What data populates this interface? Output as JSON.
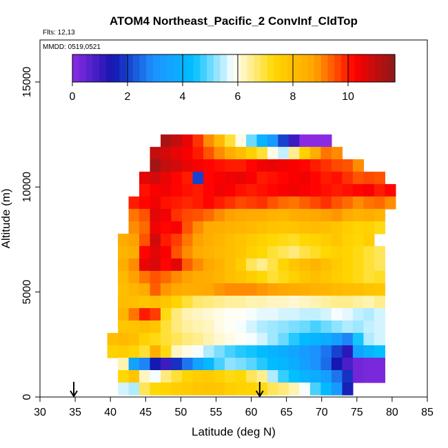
{
  "chart_data": {
    "type": "heatmap",
    "title": "ATOM4 Northeast_Pacific_2 ConvInf_CldTop",
    "flights_label": "Flts: 12,13",
    "date_label": "MMDD: 0519,0521",
    "xlabel": "Latitude (deg N)",
    "ylabel": "Altitude (m)",
    "xlim": [
      30,
      85
    ],
    "ylim": [
      0,
      17000
    ],
    "x_ticks": [
      "30",
      "35",
      "40",
      "45",
      "50",
      "55",
      "60",
      "65",
      "70",
      "75",
      "80",
      "85"
    ],
    "y_ticks": [
      "0",
      "5000",
      "10000",
      "15000"
    ],
    "colorbar": {
      "min": 0,
      "max": 11.7,
      "ticks": [
        "0",
        "2",
        "4",
        "6",
        "8",
        "10"
      ],
      "colors": [
        "#8a2be2",
        "#1515b0",
        "#1e90ff",
        "#00bfff",
        "#ffffff",
        "#ffd700",
        "#ffa500",
        "#ff0000",
        "#8b1a1a"
      ]
    },
    "arrows_x": [
      34.8,
      61.2
    ],
    "z_values": [
      [
        null,
        null,
        null,
        null,
        null,
        null,
        null,
        null,
        11.3,
        11.0,
        10.5,
        9.8,
        9.0,
        8.2,
        7.0,
        6.0,
        5.0,
        4.0,
        3.2,
        2.0,
        1.0,
        0.0,
        0.0,
        0.0,
        null,
        null,
        null,
        null,
        null,
        null,
        null
      ],
      [
        null,
        null,
        null,
        null,
        null,
        null,
        null,
        11.0,
        10.8,
        10.5,
        10.3,
        10.0,
        9.5,
        9.0,
        8.5,
        8.0,
        7.5,
        7.0,
        6.0,
        5.5,
        6.5,
        7.5,
        8.5,
        9.2,
        9.0,
        null,
        null,
        null,
        null,
        null,
        null
      ],
      [
        null,
        null,
        null,
        null,
        null,
        null,
        null,
        11.4,
        11.0,
        10.8,
        10.5,
        10.3,
        10.2,
        10.1,
        10.0,
        10.0,
        10.2,
        10.4,
        10.5,
        10.4,
        10.3,
        10.2,
        10.0,
        9.8,
        9.6,
        9.5,
        9.0,
        null,
        null,
        null,
        null
      ],
      [
        null,
        null,
        null,
        null,
        null,
        null,
        10.6,
        10.8,
        10.5,
        10.2,
        10.0,
        2.0,
        10.2,
        10.3,
        10.4,
        10.5,
        10.3,
        10.0,
        10.1,
        10.2,
        10.3,
        10.4,
        10.2,
        10.0,
        10.1,
        9.8,
        9.5,
        9.6,
        9.5,
        null,
        null
      ],
      [
        null,
        null,
        null,
        null,
        null,
        null,
        10.1,
        10.3,
        10.4,
        10.2,
        10.1,
        10.0,
        10.2,
        10.4,
        10.3,
        10.1,
        10.0,
        10.1,
        10.2,
        10.3,
        10.4,
        10.3,
        10.2,
        10.1,
        10.0,
        10.1,
        10.2,
        10.3,
        10.0,
        10.2,
        null
      ],
      [
        null,
        null,
        null,
        null,
        null,
        10.0,
        10.2,
        10.4,
        10.1,
        10.0,
        9.9,
        10.0,
        10.2,
        10.0,
        9.8,
        9.6,
        9.7,
        9.8,
        9.5,
        9.3,
        9.2,
        9.4,
        9.6,
        9.8,
        9.5,
        9.3,
        9.0,
        9.2,
        9.3,
        9.0,
        null
      ],
      [
        null,
        null,
        null,
        null,
        null,
        9.2,
        9.5,
        10.6,
        10.4,
        9.8,
        9.6,
        9.5,
        9.3,
        9.0,
        8.8,
        8.7,
        8.6,
        8.5,
        8.4,
        8.3,
        8.5,
        8.6,
        8.7,
        8.8,
        8.9,
        8.6,
        8.4,
        8.5,
        8.3,
        null,
        null
      ],
      [
        null,
        null,
        null,
        null,
        null,
        9.0,
        9.3,
        10.4,
        10.2,
        10.3,
        9.5,
        9.0,
        8.6,
        8.5,
        8.4,
        8.3,
        8.2,
        8.0,
        7.9,
        7.8,
        7.9,
        8.0,
        8.1,
        8.0,
        7.8,
        7.6,
        7.4,
        7.5,
        7.2,
        null,
        null
      ],
      [
        null,
        null,
        null,
        null,
        8.6,
        8.8,
        9.5,
        10.8,
        10.0,
        9.7,
        9.2,
        8.8,
        8.5,
        8.3,
        8.1,
        7.9,
        7.7,
        7.5,
        7.3,
        7.2,
        7.1,
        7.3,
        7.4,
        7.6,
        7.8,
        7.5,
        7.3,
        7.6,
        null,
        null,
        null
      ],
      [
        null,
        null,
        null,
        null,
        8.3,
        8.5,
        10.2,
        10.6,
        10.3,
        9.5,
        9.0,
        8.6,
        8.4,
        8.2,
        8.0,
        7.8,
        7.5,
        7.3,
        7.0,
        6.8,
        6.6,
        6.9,
        7.1,
        7.3,
        7.5,
        7.4,
        7.2,
        7.0,
        6.8,
        null,
        null
      ],
      [
        null,
        null,
        null,
        null,
        8.5,
        9.0,
        10.5,
        10.7,
        10.2,
        10.6,
        9.4,
        9.0,
        8.7,
        8.4,
        8.0,
        7.6,
        6.8,
        6.5,
        6.9,
        7.4,
        7.8,
        8.1,
        8.3,
        8.0,
        7.7,
        7.4,
        7.2,
        7.0,
        6.8,
        null,
        null
      ],
      [
        null,
        null,
        null,
        null,
        8.2,
        8.8,
        9.2,
        9.5,
        9.3,
        9.0,
        8.8,
        8.6,
        8.5,
        8.3,
        8.0,
        7.8,
        7.6,
        7.3,
        7.0,
        7.2,
        7.5,
        7.8,
        8.0,
        7.8,
        7.6,
        7.4,
        7.2,
        7.0,
        7.1,
        null,
        null
      ],
      [
        null,
        null,
        null,
        null,
        8.0,
        8.3,
        8.6,
        9.4,
        8.9,
        8.7,
        8.5,
        8.6,
        8.7,
        8.9,
        9.0,
        9.0,
        9.0,
        8.9,
        8.8,
        8.7,
        8.6,
        8.5,
        8.4,
        8.3,
        8.2,
        8.1,
        8.0,
        7.9,
        7.8,
        null,
        null
      ],
      [
        null,
        null,
        null,
        null,
        8.1,
        8.0,
        7.9,
        8.0,
        7.8,
        7.4,
        7.0,
        6.7,
        6.6,
        6.5,
        6.4,
        6.4,
        6.3,
        6.3,
        6.2,
        6.2,
        6.1,
        6.2,
        6.3,
        6.4,
        6.5,
        6.5,
        6.4,
        6.3,
        6.5,
        null,
        null
      ],
      [
        null,
        null,
        null,
        null,
        8.3,
        9.2,
        10.0,
        9.7,
        7.2,
        6.6,
        6.3,
        6.2,
        6.1,
        6.0,
        5.9,
        5.9,
        5.8,
        5.7,
        5.7,
        5.6,
        5.6,
        5.5,
        5.5,
        5.6,
        5.8,
        5.7,
        5.5,
        5.4,
        5.6,
        null,
        null
      ],
      [
        null,
        null,
        null,
        null,
        7.8,
        7.9,
        8.0,
        7.8,
        7.0,
        6.6,
        6.4,
        6.3,
        6.2,
        6.0,
        5.9,
        5.8,
        5.6,
        5.4,
        5.3,
        5.2,
        5.1,
        5.0,
        4.8,
        5.0,
        5.2,
        5.4,
        5.3,
        5.5,
        5.6,
        null,
        null
      ],
      [
        null,
        null,
        null,
        8.0,
        8.2,
        8.0,
        7.5,
        7.2,
        7.0,
        6.8,
        6.6,
        6.5,
        6.3,
        6.1,
        6.0,
        5.9,
        5.8,
        5.6,
        5.3,
        5.0,
        4.6,
        4.2,
        4.0,
        3.8,
        3.4,
        2.8,
        4.5,
        5.4,
        5.6,
        null,
        null
      ],
      [
        null,
        null,
        null,
        7.5,
        7.6,
        7.4,
        7.0,
        8.5,
        7.2,
        6.2,
        6.0,
        5.8,
        5.4,
        5.1,
        4.8,
        4.6,
        4.5,
        4.3,
        4.0,
        3.8,
        3.6,
        3.3,
        3.0,
        2.6,
        2.0,
        1.2,
        3.5,
        4.0,
        4.4,
        null,
        null
      ],
      [
        null,
        null,
        null,
        null,
        6.3,
        3.5,
        2.8,
        1.5,
        1.0,
        1.8,
        2.6,
        3.5,
        4.2,
        4.8,
        5.2,
        5.1,
        4.9,
        4.6,
        4.3,
        4.1,
        3.8,
        3.4,
        3.0,
        2.5,
        1.5,
        0.8,
        0.3,
        0.2,
        0.2,
        null,
        null
      ],
      [
        null,
        null,
        null,
        null,
        7.3,
        7.8,
        6.2,
        5.8,
        6.6,
        7.0,
        7.4,
        7.6,
        7.7,
        7.5,
        7.2,
        7.3,
        6.8,
        6.5,
        5.4,
        4.7,
        4.4,
        4.0,
        3.8,
        3.4,
        2.6,
        1.8,
        0.3,
        0.2,
        0.2,
        null,
        null
      ],
      [
        null,
        null,
        null,
        null,
        5.6,
        5.4,
        6.8,
        7.3,
        7.4,
        7.6,
        7.7,
        7.8,
        7.9,
        7.8,
        7.6,
        7.5,
        7.4,
        7.2,
        6.8,
        6.6,
        6.3,
        5.8,
        4.8,
        4.2,
        3.2,
        1.6,
        null,
        null,
        null,
        null,
        null
      ]
    ]
  }
}
